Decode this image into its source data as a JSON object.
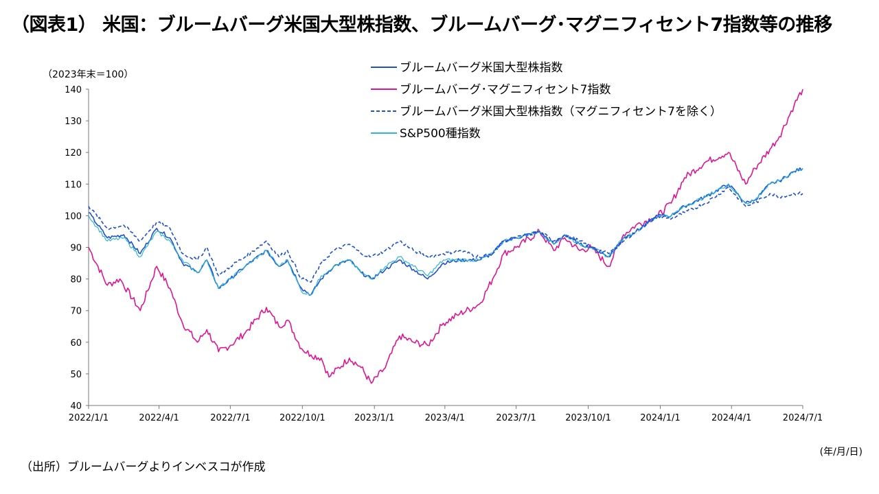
{
  "title": "（図表1） 米国：ブルームバーグ米国大型株指数、ブルームバーグ･マグニフィセント7指数等の推移",
  "y_unit": "（2023年末＝100）",
  "x_unit": "(年/月/日)",
  "source": "（出所）ブルームバーグよりインベスコが作成",
  "chart_data": {
    "type": "line",
    "ylim": [
      40,
      140
    ],
    "yticks": [
      40,
      50,
      60,
      70,
      80,
      90,
      100,
      110,
      120,
      130,
      140
    ],
    "xlim": [
      "2022-01-01",
      "2024-07-01"
    ],
    "xticks": [
      "2022/1/1",
      "2022/4/1",
      "2022/7/1",
      "2022/10/1",
      "2023/1/1",
      "2023/4/1",
      "2023/7/1",
      "2023/10/1",
      "2024/1/1",
      "2024/4/1",
      "2024/7/1"
    ],
    "grid": false,
    "legend_position": "top-right",
    "series": [
      {
        "name": "ブルームバーグ米国大型株指数",
        "color": "#1f4fd6",
        "style": "solid",
        "points": [
          [
            "2022-01-01",
            101
          ],
          [
            "2022-01-25",
            93
          ],
          [
            "2022-02-15",
            94
          ],
          [
            "2022-03-08",
            88
          ],
          [
            "2022-03-29",
            96
          ],
          [
            "2022-04-15",
            93
          ],
          [
            "2022-05-01",
            85
          ],
          [
            "2022-05-20",
            82
          ],
          [
            "2022-06-01",
            86
          ],
          [
            "2022-06-16",
            77
          ],
          [
            "2022-07-01",
            80
          ],
          [
            "2022-07-20",
            84
          ],
          [
            "2022-08-16",
            89
          ],
          [
            "2022-09-01",
            84
          ],
          [
            "2022-09-12",
            86
          ],
          [
            "2022-09-30",
            77
          ],
          [
            "2022-10-12",
            75
          ],
          [
            "2022-10-25",
            80
          ],
          [
            "2022-11-10",
            84
          ],
          [
            "2022-11-30",
            86
          ],
          [
            "2022-12-15",
            82
          ],
          [
            "2022-12-28",
            80
          ],
          [
            "2023-01-15",
            83
          ],
          [
            "2023-02-02",
            86
          ],
          [
            "2023-02-20",
            83
          ],
          [
            "2023-03-10",
            80
          ],
          [
            "2023-03-30",
            85
          ],
          [
            "2023-04-20",
            86
          ],
          [
            "2023-05-15",
            86
          ],
          [
            "2023-06-01",
            88
          ],
          [
            "2023-06-15",
            92
          ],
          [
            "2023-07-01",
            93
          ],
          [
            "2023-07-31",
            95
          ],
          [
            "2023-08-18",
            91
          ],
          [
            "2023-09-01",
            94
          ],
          [
            "2023-09-20",
            91
          ],
          [
            "2023-10-05",
            90
          ],
          [
            "2023-10-27",
            87
          ],
          [
            "2023-11-15",
            93
          ],
          [
            "2023-12-01",
            95
          ],
          [
            "2023-12-29",
            100
          ],
          [
            "2024-01-15",
            100
          ],
          [
            "2024-02-01",
            103
          ],
          [
            "2024-02-28",
            106
          ],
          [
            "2024-03-28",
            110
          ],
          [
            "2024-04-19",
            104
          ],
          [
            "2024-05-01",
            105
          ],
          [
            "2024-05-20",
            110
          ],
          [
            "2024-06-01",
            111
          ],
          [
            "2024-06-20",
            114
          ],
          [
            "2024-07-01",
            115
          ]
        ]
      },
      {
        "name": "ブルームバーグ･マグニフィセント7指数",
        "color": "#e0148f",
        "style": "solid",
        "points": [
          [
            "2022-01-01",
            90
          ],
          [
            "2022-01-25",
            78
          ],
          [
            "2022-02-10",
            80
          ],
          [
            "2022-03-08",
            70
          ],
          [
            "2022-03-29",
            84
          ],
          [
            "2022-04-15",
            77
          ],
          [
            "2022-05-01",
            66
          ],
          [
            "2022-05-20",
            60
          ],
          [
            "2022-06-01",
            64
          ],
          [
            "2022-06-16",
            57
          ],
          [
            "2022-07-01",
            59
          ],
          [
            "2022-07-20",
            63
          ],
          [
            "2022-08-16",
            71
          ],
          [
            "2022-09-01",
            65
          ],
          [
            "2022-09-12",
            67
          ],
          [
            "2022-09-30",
            58
          ],
          [
            "2022-10-12",
            56
          ],
          [
            "2022-10-25",
            55
          ],
          [
            "2022-11-04",
            49
          ],
          [
            "2022-11-30",
            55
          ],
          [
            "2022-12-15",
            52
          ],
          [
            "2022-12-28",
            47
          ],
          [
            "2023-01-15",
            52
          ],
          [
            "2023-02-02",
            62
          ],
          [
            "2023-02-20",
            60
          ],
          [
            "2023-03-10",
            59
          ],
          [
            "2023-03-30",
            66
          ],
          [
            "2023-04-20",
            69
          ],
          [
            "2023-05-15",
            72
          ],
          [
            "2023-06-01",
            80
          ],
          [
            "2023-06-15",
            88
          ],
          [
            "2023-07-01",
            90
          ],
          [
            "2023-07-31",
            95
          ],
          [
            "2023-08-18",
            89
          ],
          [
            "2023-09-01",
            93
          ],
          [
            "2023-09-20",
            89
          ],
          [
            "2023-10-05",
            90
          ],
          [
            "2023-10-27",
            84
          ],
          [
            "2023-11-15",
            94
          ],
          [
            "2023-12-01",
            97
          ],
          [
            "2023-12-29",
            100
          ],
          [
            "2024-01-15",
            104
          ],
          [
            "2024-02-01",
            112
          ],
          [
            "2024-02-28",
            117
          ],
          [
            "2024-03-28",
            120
          ],
          [
            "2024-04-19",
            110
          ],
          [
            "2024-05-01",
            115
          ],
          [
            "2024-05-20",
            121
          ],
          [
            "2024-06-01",
            125
          ],
          [
            "2024-06-20",
            135
          ],
          [
            "2024-07-01",
            140
          ]
        ]
      },
      {
        "name": "ブルームバーグ米国大型株指数（マグニフィセント7を除く）",
        "color": "#1f4fd6",
        "style": "dashed",
        "points": [
          [
            "2022-01-01",
            103
          ],
          [
            "2022-01-25",
            96
          ],
          [
            "2022-02-15",
            97
          ],
          [
            "2022-03-08",
            92
          ],
          [
            "2022-03-29",
            98
          ],
          [
            "2022-04-15",
            96
          ],
          [
            "2022-05-01",
            88
          ],
          [
            "2022-05-20",
            86
          ],
          [
            "2022-06-01",
            90
          ],
          [
            "2022-06-16",
            81
          ],
          [
            "2022-07-01",
            84
          ],
          [
            "2022-07-20",
            87
          ],
          [
            "2022-08-16",
            92
          ],
          [
            "2022-09-01",
            87
          ],
          [
            "2022-09-12",
            89
          ],
          [
            "2022-09-30",
            80
          ],
          [
            "2022-10-12",
            79
          ],
          [
            "2022-10-25",
            85
          ],
          [
            "2022-11-10",
            89
          ],
          [
            "2022-11-30",
            91
          ],
          [
            "2022-12-15",
            88
          ],
          [
            "2022-12-28",
            87
          ],
          [
            "2023-01-15",
            89
          ],
          [
            "2023-02-02",
            92
          ],
          [
            "2023-02-20",
            89
          ],
          [
            "2023-03-10",
            87
          ],
          [
            "2023-03-30",
            88
          ],
          [
            "2023-04-20",
            89
          ],
          [
            "2023-05-15",
            87
          ],
          [
            "2023-06-01",
            88
          ],
          [
            "2023-06-15",
            92
          ],
          [
            "2023-07-01",
            93
          ],
          [
            "2023-07-31",
            95
          ],
          [
            "2023-08-18",
            92
          ],
          [
            "2023-09-01",
            94
          ],
          [
            "2023-09-20",
            92
          ],
          [
            "2023-10-05",
            90
          ],
          [
            "2023-10-27",
            88
          ],
          [
            "2023-11-15",
            92
          ],
          [
            "2023-12-01",
            95
          ],
          [
            "2023-12-29",
            100
          ],
          [
            "2024-01-15",
            99
          ],
          [
            "2024-02-01",
            101
          ],
          [
            "2024-02-28",
            104
          ],
          [
            "2024-03-28",
            109
          ],
          [
            "2024-04-19",
            103
          ],
          [
            "2024-05-01",
            104
          ],
          [
            "2024-05-20",
            107
          ],
          [
            "2024-06-01",
            106
          ],
          [
            "2024-06-20",
            107
          ],
          [
            "2024-07-01",
            107
          ]
        ]
      },
      {
        "name": "S&P500種指数",
        "color": "#2bb6d9",
        "style": "solid",
        "points": [
          [
            "2022-01-01",
            100
          ],
          [
            "2022-01-25",
            92
          ],
          [
            "2022-02-15",
            93
          ],
          [
            "2022-03-08",
            87
          ],
          [
            "2022-03-29",
            95
          ],
          [
            "2022-04-15",
            92
          ],
          [
            "2022-05-01",
            86
          ],
          [
            "2022-05-20",
            82
          ],
          [
            "2022-06-01",
            86
          ],
          [
            "2022-06-16",
            77
          ],
          [
            "2022-07-01",
            80
          ],
          [
            "2022-07-20",
            84
          ],
          [
            "2022-08-16",
            89
          ],
          [
            "2022-09-01",
            84
          ],
          [
            "2022-09-12",
            86
          ],
          [
            "2022-09-30",
            76
          ],
          [
            "2022-10-12",
            75
          ],
          [
            "2022-10-25",
            81
          ],
          [
            "2022-11-10",
            84
          ],
          [
            "2022-11-30",
            86
          ],
          [
            "2022-12-15",
            82
          ],
          [
            "2022-12-28",
            80
          ],
          [
            "2023-01-15",
            84
          ],
          [
            "2023-02-02",
            87
          ],
          [
            "2023-02-20",
            84
          ],
          [
            "2023-03-10",
            81
          ],
          [
            "2023-03-30",
            86
          ],
          [
            "2023-04-20",
            86
          ],
          [
            "2023-05-15",
            86
          ],
          [
            "2023-06-01",
            88
          ],
          [
            "2023-06-15",
            92
          ],
          [
            "2023-07-01",
            93
          ],
          [
            "2023-07-31",
            95
          ],
          [
            "2023-08-18",
            91
          ],
          [
            "2023-09-01",
            94
          ],
          [
            "2023-09-20",
            91
          ],
          [
            "2023-10-05",
            90
          ],
          [
            "2023-10-27",
            87
          ],
          [
            "2023-11-15",
            93
          ],
          [
            "2023-12-01",
            95
          ],
          [
            "2023-12-29",
            100
          ],
          [
            "2024-01-15",
            100
          ],
          [
            "2024-02-01",
            103
          ],
          [
            "2024-02-28",
            106
          ],
          [
            "2024-03-28",
            110
          ],
          [
            "2024-04-19",
            104
          ],
          [
            "2024-05-01",
            105
          ],
          [
            "2024-05-20",
            110
          ],
          [
            "2024-06-01",
            111
          ],
          [
            "2024-06-20",
            114
          ],
          [
            "2024-07-01",
            115
          ]
        ]
      }
    ]
  }
}
